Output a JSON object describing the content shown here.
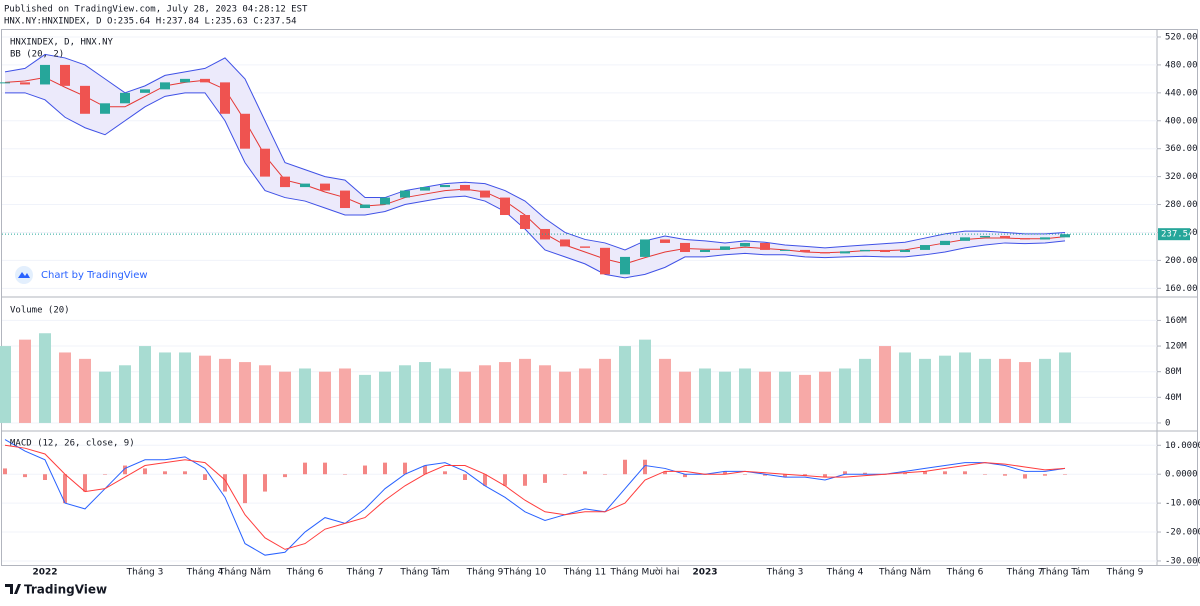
{
  "header": {
    "published": "Published on TradingView.com, July 28, 2023 04:28:12 EST",
    "symbol_line": "HNX.NY:HNXINDEX, D O:235.64 H:237.84 L:235.63 C:237.54"
  },
  "chart_data": [
    {
      "type": "candlestick",
      "legend": "HNXINDEX, D, HNX.NY",
      "indicator": "BB (20, 2)",
      "watermark": "Chart by TradingView",
      "categories": [
        null,
        null,
        "2022",
        null,
        null,
        null,
        null,
        "Tháng 3",
        null,
        null,
        "Tháng 4",
        null,
        "Tháng Năm",
        null,
        null,
        "Tháng 6",
        null,
        null,
        "Tháng 7",
        null,
        null,
        "Tháng Tám",
        null,
        null,
        "Tháng 9",
        null,
        "Tháng 10",
        null,
        null,
        "Tháng 11",
        null,
        null,
        "Tháng Mười hai",
        null,
        null,
        "2023",
        null,
        null,
        null,
        "Tháng 3",
        null,
        null,
        "Tháng 4",
        null,
        null,
        "Tháng Năm",
        null,
        null,
        "Tháng 6",
        null,
        null,
        "Tháng 7",
        null,
        "Tháng Tám",
        null,
        null,
        "Tháng 9",
        null
      ],
      "close": [
        455,
        452,
        480,
        450,
        410,
        425,
        440,
        445,
        455,
        460,
        455,
        410,
        360,
        320,
        305,
        310,
        300,
        275,
        280,
        290,
        300,
        305,
        308,
        300,
        290,
        265,
        245,
        230,
        220,
        218,
        180,
        205,
        230,
        225,
        212,
        215,
        220,
        225,
        215,
        215,
        212,
        210,
        213,
        215,
        212,
        215,
        222,
        228,
        233,
        235,
        232,
        230,
        233,
        237.54,
        null,
        null,
        null,
        null
      ],
      "bb_upper": [
        470,
        475,
        495,
        490,
        480,
        460,
        440,
        450,
        465,
        470,
        475,
        490,
        460,
        400,
        340,
        330,
        320,
        315,
        290,
        290,
        300,
        305,
        310,
        312,
        310,
        300,
        285,
        260,
        240,
        230,
        225,
        215,
        228,
        235,
        230,
        228,
        225,
        228,
        226,
        222,
        220,
        218,
        220,
        222,
        224,
        226,
        232,
        238,
        242,
        242,
        240,
        238,
        238,
        240,
        null,
        null,
        null,
        null
      ],
      "bb_basis": [
        455,
        457,
        462,
        448,
        435,
        420,
        420,
        435,
        450,
        455,
        458,
        445,
        400,
        350,
        315,
        308,
        298,
        290,
        278,
        280,
        290,
        295,
        300,
        302,
        298,
        285,
        265,
        238,
        222,
        212,
        202,
        195,
        204,
        212,
        217,
        216,
        216,
        219,
        217,
        215,
        212,
        211,
        212,
        214,
        214,
        215,
        220,
        225,
        230,
        232,
        232,
        231,
        231,
        234,
        null,
        null,
        null,
        null
      ],
      "bb_lower": [
        440,
        440,
        430,
        405,
        390,
        380,
        400,
        420,
        435,
        440,
        440,
        400,
        340,
        300,
        290,
        285,
        275,
        265,
        265,
        270,
        280,
        285,
        290,
        292,
        285,
        270,
        245,
        215,
        205,
        195,
        180,
        175,
        180,
        190,
        205,
        205,
        208,
        210,
        208,
        208,
        205,
        204,
        205,
        206,
        205,
        205,
        208,
        212,
        218,
        222,
        225,
        224,
        225,
        228,
        null,
        null,
        null,
        null
      ],
      "last_price": 237.54,
      "up_color": "#26a69a",
      "down_color": "#ef5350",
      "band_color": "#3f51e6",
      "basis_color": "#e53935",
      "band_fill": "#eceafb",
      "ylim": [
        149,
        530
      ],
      "yticks": [
        {
          "value": 160,
          "label": "160.00"
        },
        {
          "value": 200,
          "label": "200.00"
        },
        {
          "value": 240,
          "label": "240.00"
        },
        {
          "value": 280,
          "label": "280.00"
        },
        {
          "value": 320,
          "label": "320.00"
        },
        {
          "value": 360,
          "label": "360.00"
        },
        {
          "value": 400,
          "label": "400.00"
        },
        {
          "value": 440,
          "label": "440.00"
        },
        {
          "value": 480,
          "label": "480.00"
        },
        {
          "value": 520,
          "label": "520.00"
        }
      ],
      "grid": true
    },
    {
      "type": "volume",
      "legend": "Volume (20)",
      "values": [
        120000000,
        130000000,
        140000000,
        110000000,
        100000000,
        80000000,
        90000000,
        120000000,
        110000000,
        110000000,
        105000000,
        100000000,
        95000000,
        90000000,
        80000000,
        85000000,
        80000000,
        85000000,
        75000000,
        80000000,
        90000000,
        95000000,
        85000000,
        80000000,
        90000000,
        95000000,
        100000000,
        90000000,
        80000000,
        85000000,
        100000000,
        120000000,
        130000000,
        100000000,
        80000000,
        85000000,
        80000000,
        85000000,
        80000000,
        80000000,
        75000000,
        80000000,
        85000000,
        100000000,
        120000000,
        110000000,
        100000000,
        105000000,
        110000000,
        100000000,
        100000000,
        95000000,
        100000000,
        110000000,
        null,
        null,
        null,
        null
      ],
      "up_color": "#a8dcd2",
      "down_color": "#f7a9a7",
      "ylim": [
        -11000000,
        195000000
      ],
      "yticks": [
        0,
        {
          "value": 40000000,
          "label": "40M"
        },
        {
          "value": 80000000,
          "label": "80M"
        },
        {
          "value": 120000000,
          "label": "120M"
        },
        {
          "value": 160000000,
          "label": "160M"
        }
      ],
      "grid": true
    },
    {
      "type": "macd",
      "legend": "MACD (12, 26, close, 9)",
      "macd": [
        12,
        8,
        5,
        -10,
        -12,
        -5,
        2,
        5,
        5,
        6,
        2,
        -8,
        -24,
        -28,
        -27,
        -20,
        -15,
        -17,
        -12,
        -5,
        0,
        3,
        4,
        1,
        -4,
        -8,
        -13,
        -16,
        -14,
        -12,
        -13,
        -5,
        3,
        2,
        0,
        0,
        1,
        1,
        0,
        -1,
        -1,
        -2,
        0,
        0,
        0,
        1,
        2,
        3,
        4,
        4,
        3,
        1,
        1,
        2,
        null,
        null,
        null,
        null
      ],
      "signal": [
        10,
        9,
        7,
        0,
        -6,
        -5,
        -1,
        3,
        4,
        5,
        4,
        -2,
        -14,
        -22,
        -26,
        -24,
        -19,
        -17,
        -15,
        -9,
        -4,
        0,
        3,
        3,
        0,
        -4,
        -9,
        -13,
        -14,
        -13,
        -13,
        -10,
        -2,
        1,
        1,
        0,
        0,
        1,
        0.5,
        0,
        -0.5,
        -1,
        -1,
        -0.5,
        0,
        0.5,
        1,
        2,
        3,
        4,
        3.5,
        2.5,
        1.5,
        2,
        null,
        null,
        null,
        null
      ],
      "histogram": [
        2,
        -1,
        -2,
        -10,
        -6,
        0,
        3,
        2,
        1,
        1,
        -2,
        -6,
        -10,
        -6,
        -1,
        4,
        4,
        0,
        3,
        4,
        4,
        3,
        1,
        -2,
        -4,
        -4,
        -4,
        -3,
        0,
        1,
        0,
        5,
        5,
        1,
        -1,
        0,
        1,
        0,
        -0.5,
        -1,
        -0.5,
        -1,
        1,
        0.5,
        0,
        0.5,
        1,
        1,
        1,
        0,
        -0.5,
        -1.5,
        -0.5,
        0,
        null,
        null,
        null,
        null
      ],
      "macd_color": "#2962ff",
      "signal_color": "#ff3d3d",
      "hist_color": "#ef5350",
      "ylim": [
        -31.4,
        14.6
      ],
      "yticks": [
        {
          "value": 10,
          "label": "10.0000"
        },
        {
          "value": 0,
          "label": "0.0000"
        },
        {
          "value": -10,
          "label": "-10.0000"
        },
        {
          "value": -20,
          "label": "-20.0000"
        },
        {
          "value": -30,
          "label": "-30.0000"
        }
      ],
      "grid": true
    }
  ],
  "footer": {
    "brand": "TradingView"
  }
}
